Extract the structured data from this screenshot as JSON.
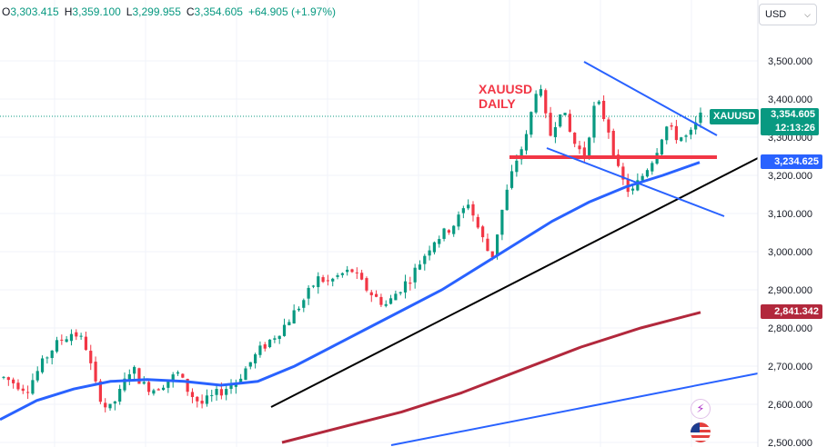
{
  "header": {
    "open_label": "O",
    "open": "3,303.415",
    "high_label": "H",
    "high": "3,359.100",
    "low_label": "L",
    "low": "3,299.955",
    "close_label": "C",
    "close": "3,354.605",
    "change": "+64.905 (+1.97%)"
  },
  "currency_select": {
    "value": "USD",
    "icon": "chevron-down-icon"
  },
  "annotation": {
    "line1": "XAUUSD",
    "line2": "DAILY"
  },
  "symbol_tag": "XAUUSD",
  "price_tags": {
    "current": "3,354.605",
    "countdown": "12:13:26",
    "support": "3,234.625",
    "ma_long": "2,841.342"
  },
  "icons": {
    "bolt": "bolt-icon",
    "flag": "us-flag-icon"
  },
  "colors": {
    "up": "#089981",
    "down": "#f23645",
    "ma_fast": "#2962ff",
    "ma_slow": "#b2283c",
    "trend": "#000000",
    "support": "#f23645"
  },
  "chart_data": {
    "type": "candlestick",
    "symbol": "XAUUSD",
    "ylim": [
      2500,
      3560
    ],
    "y_ticks": [
      "3,500.000",
      "3,400.000",
      "3,300.000",
      "3,200.000",
      "3,100.000",
      "3,000.000",
      "2,900.000",
      "2,800.000",
      "2,700.000",
      "2,600.000",
      "2,500.000"
    ],
    "y_tick_values": [
      3500,
      3400,
      3300,
      3200,
      3100,
      3000,
      2900,
      2800,
      2700,
      2600,
      2500
    ],
    "close_path": [
      2670,
      2655,
      2640,
      2690,
      2740,
      2770,
      2790,
      2760,
      2640,
      2580,
      2630,
      2700,
      2650,
      2640,
      2660,
      2680,
      2630,
      2600,
      2620,
      2640,
      2660,
      2700,
      2740,
      2770,
      2800,
      2840,
      2880,
      2930,
      2920,
      2940,
      2950,
      2910,
      2880,
      2860,
      2900,
      2930,
      2980,
      3030,
      3050,
      3080,
      3130,
      3050,
      2980,
      3120,
      3230,
      3300,
      3450,
      3300,
      3380,
      3290,
      3250,
      3400,
      3330,
      3200,
      3150,
      3200,
      3250,
      3330,
      3300,
      3300,
      3354
    ],
    "candle_count": 145,
    "ma_fast": [
      2560,
      2610,
      2640,
      2660,
      2665,
      2660,
      2650,
      2660,
      2700,
      2750,
      2800,
      2850,
      2900,
      2960,
      3020,
      3080,
      3130,
      3170,
      3200,
      3234
    ],
    "ma_slow": [
      2500,
      2540,
      2580,
      2630,
      2690,
      2750,
      2800,
      2841
    ],
    "trendline_main": [
      [
        2590,
        3250
      ]
    ],
    "support_level": 3250,
    "triangle_upper": [
      3495,
      3310
    ],
    "triangle_lower": [
      3275,
      3095
    ]
  }
}
